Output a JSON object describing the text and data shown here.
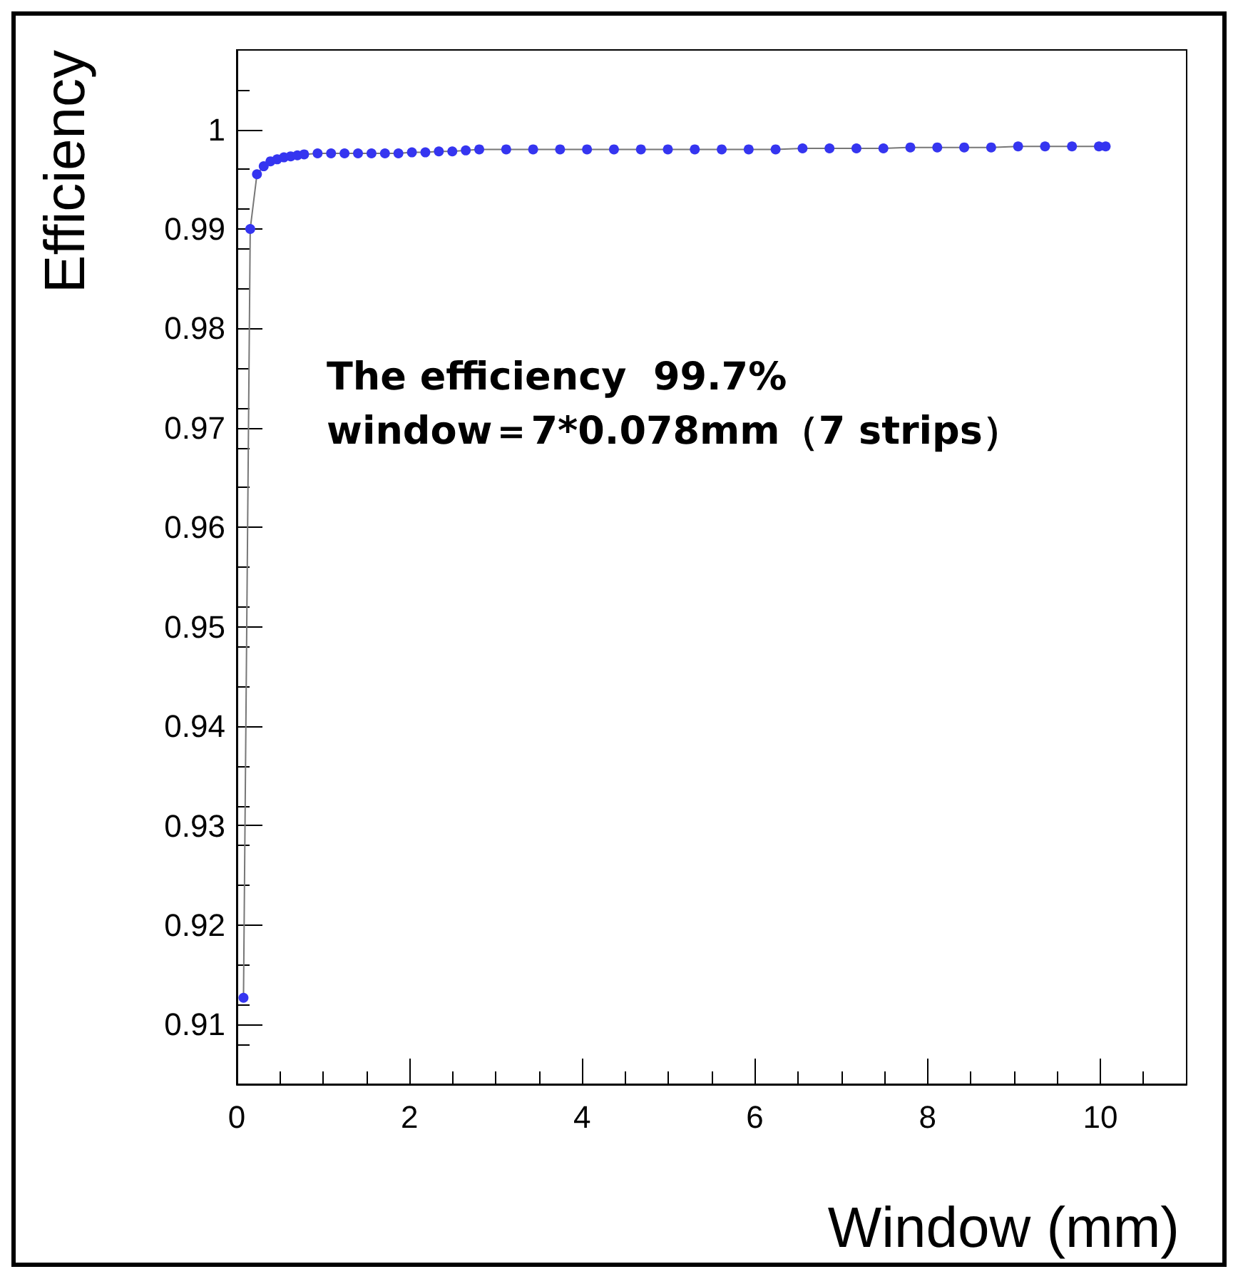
{
  "chart_data": {
    "type": "line",
    "xlabel": "Window (mm)",
    "ylabel": "Efficiency",
    "annotations": [
      "The efficiency  99.7%",
      "window＝7*0.078mm（7 strips）"
    ],
    "marker": "circle",
    "line_style": "solid",
    "grid": false,
    "x": [
      0.078,
      0.156,
      0.234,
      0.312,
      0.39,
      0.468,
      0.546,
      0.624,
      0.702,
      0.78,
      0.936,
      1.092,
      1.248,
      1.404,
      1.56,
      1.716,
      1.872,
      2.028,
      2.184,
      2.34,
      2.496,
      2.652,
      2.808,
      3.12,
      3.432,
      3.744,
      4.056,
      4.368,
      4.68,
      4.992,
      5.304,
      5.616,
      5.928,
      6.24,
      6.552,
      6.864,
      7.176,
      7.488,
      7.8,
      8.112,
      8.424,
      8.736,
      9.048,
      9.36,
      9.672,
      9.984,
      10.062
    ],
    "series": [
      {
        "color": "#3535f0",
        "values": [
          0.9127,
          0.99,
          0.9955,
          0.9963,
          0.9968,
          0.997,
          0.9972,
          0.9973,
          0.9974,
          0.9975,
          0.9976,
          0.9976,
          0.9976,
          0.9976,
          0.9976,
          0.9976,
          0.9976,
          0.9977,
          0.9977,
          0.9978,
          0.9978,
          0.9979,
          0.998,
          0.998,
          0.998,
          0.998,
          0.998,
          0.998,
          0.998,
          0.998,
          0.998,
          0.998,
          0.998,
          0.998,
          0.9981,
          0.9981,
          0.9981,
          0.9981,
          0.9982,
          0.9982,
          0.9982,
          0.9982,
          0.9983,
          0.9983,
          0.9983,
          0.9983,
          0.9983
        ]
      }
    ],
    "xlim": [
      0,
      11
    ],
    "xticks": [
      0,
      2,
      4,
      6,
      8,
      10
    ],
    "ylim": [
      0.904,
      1.008
    ],
    "yticks": [
      0.91,
      0.92,
      0.93,
      0.94,
      0.95,
      0.96,
      0.97,
      0.98,
      0.99,
      1
    ]
  }
}
